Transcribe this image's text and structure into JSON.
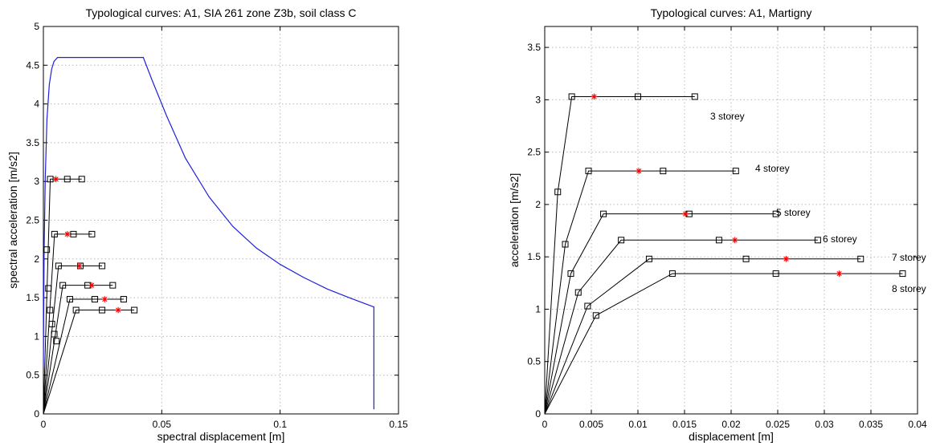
{
  "chart_data": [
    {
      "type": "line",
      "title": "Typological curves: A1, SIA 261 zone Z3b, soil class C",
      "xlabel": "spectral displacement [m]",
      "ylabel": "spectral acceleration [m/s2]",
      "xlim": [
        0,
        0.15
      ],
      "ylim": [
        0,
        5
      ],
      "xticks": [
        0,
        0.05,
        0.1,
        0.15
      ],
      "xtick_labels": [
        "0",
        "0.05",
        "0.1",
        "0.15"
      ],
      "yticks": [
        0,
        0.5,
        1,
        1.5,
        2,
        2.5,
        3,
        3.5,
        4,
        4.5,
        5
      ],
      "ytick_labels": [
        "0",
        "0.5",
        "1",
        "1.5",
        "2",
        "2.5",
        "3",
        "3.5",
        "4",
        "4.5",
        "5"
      ],
      "grid": true,
      "demand_spectrum": {
        "color": "#1f1fe0",
        "x": [
          0,
          0.0003,
          0.0008,
          0.0015,
          0.0025,
          0.0035,
          0.0045,
          0.006,
          0.0422,
          0.046,
          0.052,
          0.06,
          0.07,
          0.08,
          0.09,
          0.1,
          0.11,
          0.12,
          0.13,
          0.1396,
          0.1396
        ],
        "y": [
          0.6,
          2.1,
          3.05,
          3.8,
          4.25,
          4.45,
          4.55,
          4.6,
          4.6,
          4.3,
          3.85,
          3.3,
          2.8,
          2.42,
          2.14,
          1.93,
          1.76,
          1.61,
          1.49,
          1.38,
          0.06
        ]
      },
      "capacity_curves": [
        {
          "x": [
            0,
            0.0029,
            0.0162
          ],
          "y": [
            0,
            3.03,
            3.03
          ],
          "markers_x": [
            0.0014,
            0.0029,
            0.0101,
            0.0162
          ],
          "markers_y": [
            2.12,
            3.03,
            3.03,
            3.03
          ],
          "star": [
            0.0053,
            3.03
          ]
        },
        {
          "x": [
            0,
            0.0047,
            0.0205
          ],
          "y": [
            0,
            2.32,
            2.32
          ],
          "markers_x": [
            0.0021,
            0.0047,
            0.0127,
            0.0205
          ],
          "markers_y": [
            1.62,
            2.32,
            2.32,
            2.32
          ],
          "star": [
            0.0101,
            2.32
          ]
        },
        {
          "x": [
            0,
            0.0064,
            0.0248
          ],
          "y": [
            0,
            1.91,
            1.91
          ],
          "markers_x": [
            0.0028,
            0.0064,
            0.0156,
            0.0248
          ],
          "markers_y": [
            1.34,
            1.91,
            1.91,
            1.91
          ],
          "star": [
            0.0152,
            1.91
          ]
        },
        {
          "x": [
            0,
            0.0082,
            0.0293
          ],
          "y": [
            0,
            1.66,
            1.66
          ],
          "markers_x": [
            0.0036,
            0.0082,
            0.0187,
            0.0293
          ],
          "markers_y": [
            1.16,
            1.66,
            1.66,
            1.66
          ],
          "star": [
            0.0204,
            1.66
          ]
        },
        {
          "x": [
            0,
            0.0112,
            0.0339
          ],
          "y": [
            0,
            1.48,
            1.48
          ],
          "markers_x": [
            0.0046,
            0.0112,
            0.0217,
            0.0339
          ],
          "markers_y": [
            1.03,
            1.48,
            1.48,
            1.48
          ],
          "star": [
            0.0259,
            1.48
          ]
        },
        {
          "x": [
            0,
            0.0138,
            0.0384
          ],
          "y": [
            0,
            1.34,
            1.34
          ],
          "markers_x": [
            0.0055,
            0.0138,
            0.0248,
            0.0384
          ],
          "markers_y": [
            0.94,
            1.34,
            1.34,
            1.34
          ],
          "star": [
            0.0316,
            1.34
          ]
        }
      ]
    },
    {
      "type": "line",
      "title": "Typological curves: A1, Martigny",
      "xlabel": "displacement [m]",
      "ylabel": "acceleration [m/s2]",
      "xlim": [
        0,
        0.04
      ],
      "ylim": [
        0,
        3.7
      ],
      "xticks": [
        0,
        0.005,
        0.01,
        0.015,
        0.02,
        0.025,
        0.03,
        0.035,
        0.04
      ],
      "xtick_labels": [
        "0",
        "0.005",
        "0.01",
        "0.015",
        "0.02",
        "0.025",
        "0.03",
        "0.035",
        "0.04"
      ],
      "yticks": [
        0,
        0.5,
        1,
        1.5,
        2,
        2.5,
        3,
        3.5
      ],
      "ytick_labels": [
        "0",
        "0.5",
        "1",
        "1.5",
        "2",
        "2.5",
        "3",
        "3.5"
      ],
      "grid": true,
      "series": [
        {
          "label": "3 storey",
          "x": [
            0,
            0.0014,
            0.0029,
            0.0161
          ],
          "y": [
            0,
            2.12,
            3.03,
            3.03
          ],
          "markers_x": [
            0.0014,
            0.0029,
            0.01,
            0.0161
          ],
          "markers_y": [
            2.12,
            3.03,
            3.03,
            3.03
          ],
          "star": [
            0.0053,
            3.03
          ]
        },
        {
          "label": "4 storey",
          "x": [
            0,
            0.0022,
            0.0047,
            0.0205
          ],
          "y": [
            0,
            1.62,
            2.32,
            2.32
          ],
          "markers_x": [
            0.0022,
            0.0047,
            0.0127,
            0.0205
          ],
          "markers_y": [
            1.62,
            2.32,
            2.32,
            2.32
          ],
          "star": [
            0.0101,
            2.32
          ]
        },
        {
          "label": "5 storey",
          "x": [
            0,
            0.0028,
            0.0063,
            0.0248
          ],
          "y": [
            0,
            1.34,
            1.91,
            1.91
          ],
          "markers_x": [
            0.0028,
            0.0063,
            0.0155,
            0.0248
          ],
          "markers_y": [
            1.34,
            1.91,
            1.91,
            1.91
          ],
          "star": [
            0.0151,
            1.91
          ]
        },
        {
          "label": "6 storey",
          "x": [
            0,
            0.0036,
            0.0082,
            0.0293
          ],
          "y": [
            0,
            1.16,
            1.66,
            1.66
          ],
          "markers_x": [
            0.0036,
            0.0082,
            0.0187,
            0.0293
          ],
          "markers_y": [
            1.16,
            1.66,
            1.66,
            1.66
          ],
          "star": [
            0.0204,
            1.66
          ]
        },
        {
          "label": "7 storey",
          "x": [
            0,
            0.0046,
            0.0112,
            0.0339
          ],
          "y": [
            0,
            1.03,
            1.48,
            1.48
          ],
          "markers_x": [
            0.0046,
            0.0112,
            0.0216,
            0.0339
          ],
          "markers_y": [
            1.03,
            1.48,
            1.48,
            1.48
          ],
          "star": [
            0.0259,
            1.48
          ]
        },
        {
          "label": "8 storey",
          "x": [
            0,
            0.0055,
            0.0137,
            0.0384
          ],
          "y": [
            0,
            0.94,
            1.34,
            1.34
          ],
          "markers_x": [
            0.0055,
            0.0137,
            0.0248,
            0.0384
          ],
          "markers_y": [
            0.94,
            1.34,
            1.34,
            1.34
          ],
          "star": [
            0.0316,
            1.34
          ]
        }
      ]
    }
  ]
}
